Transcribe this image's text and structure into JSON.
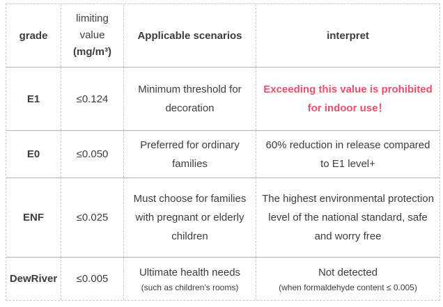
{
  "colors": {
    "alert": "#e9506b",
    "text": "#3d3d3d",
    "border_dashed": "#c8c8c8",
    "border_solid": "#b0b0b0"
  },
  "table": {
    "header": {
      "grade": "grade",
      "limit_label": "limiting value",
      "limit_unit": "(mg/m³)",
      "scenarios": "Applicable scenarios",
      "interpret": "interpret"
    },
    "rows": [
      {
        "grade": "E1",
        "limit": "≤0.124",
        "scenario": "Minimum threshold for decoration",
        "interpret": "Exceeding this value is prohibited for indoor use！"
      },
      {
        "grade": "E0",
        "limit": "≤0.050",
        "scenario": "Preferred for ordinary families",
        "interpret": "60% reduction in release compared to E1 level+"
      },
      {
        "grade": "ENF",
        "limit": "≤0.025",
        "scenario": "Must choose for families with pregnant or elderly children",
        "interpret": "The highest environmental protection level of the national standard, safe and worry free"
      },
      {
        "grade": "DewRiver",
        "limit": "≤0.005",
        "scenario": "Ultimate health needs",
        "scenario_sub": "(such as children's rooms)",
        "interpret": "Not detected",
        "interpret_sub": "(when formaldehyde content ≤ 0.005)"
      }
    ]
  }
}
